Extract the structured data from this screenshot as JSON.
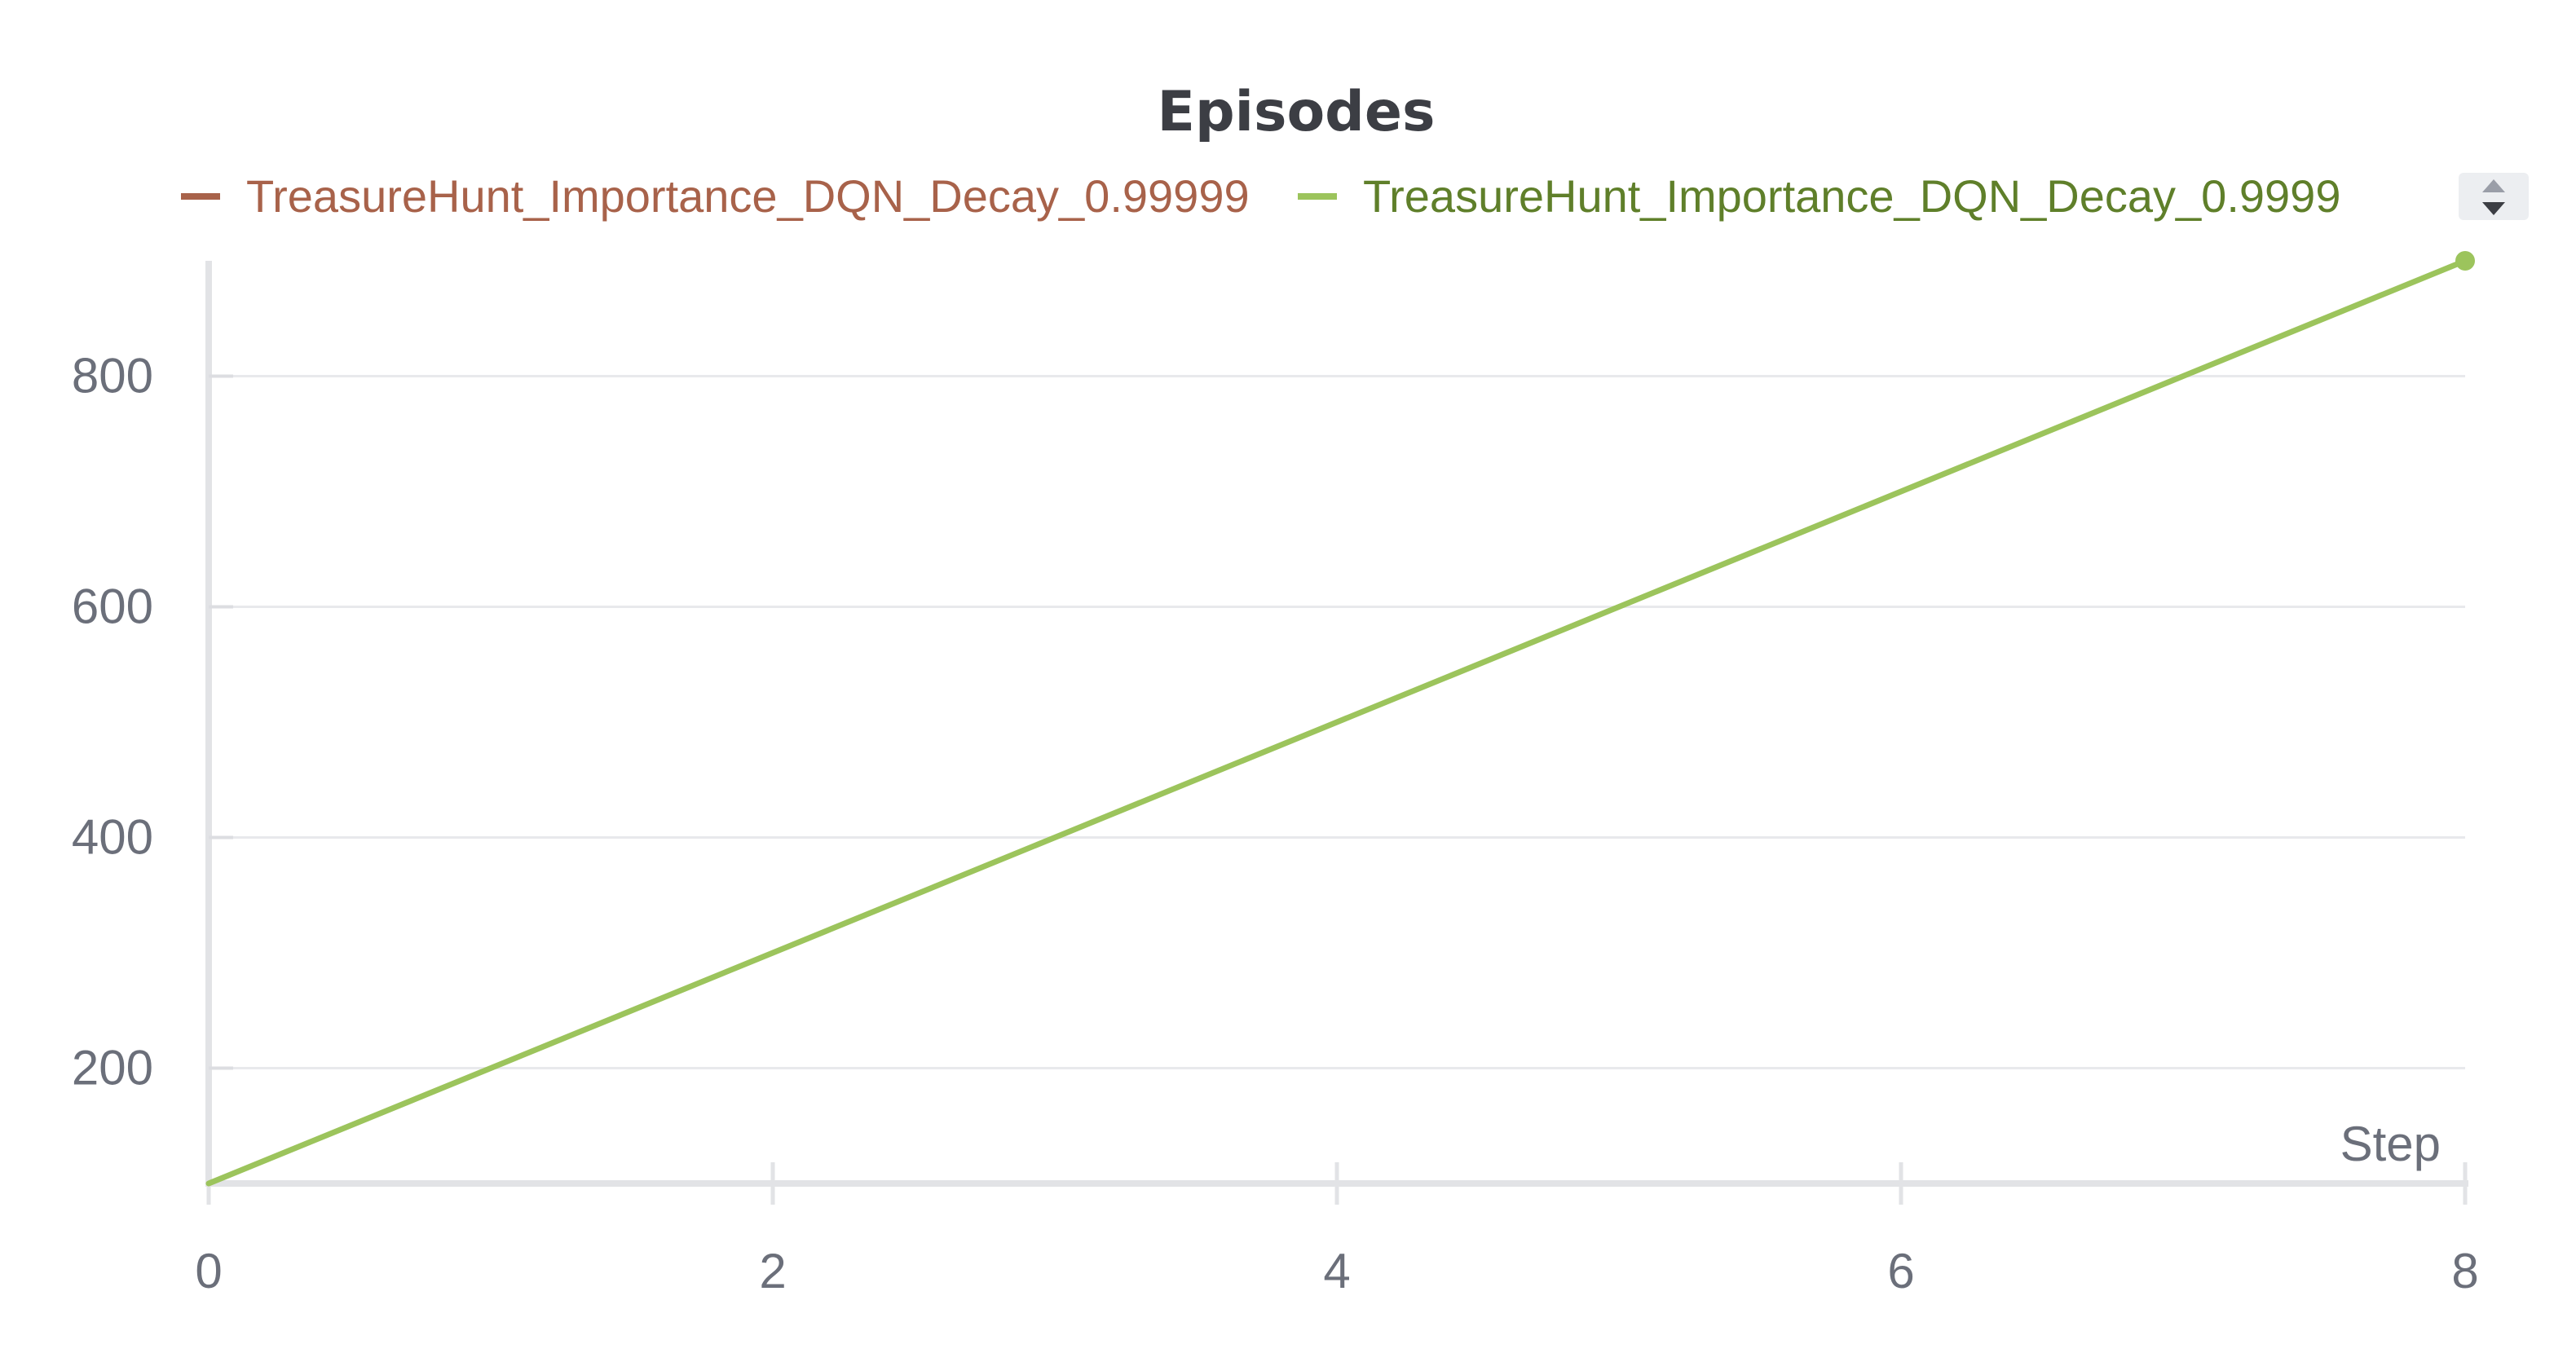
{
  "chart_data": {
    "type": "line",
    "title": "Episodes",
    "xlabel": "Step",
    "ylabel": "",
    "xlim": [
      0,
      8
    ],
    "ylim": [
      100,
      900
    ],
    "x_ticks": [
      0,
      2,
      4,
      6,
      8
    ],
    "y_ticks": [
      200,
      400,
      600,
      800
    ],
    "grid": true,
    "legend_position": "top",
    "series": [
      {
        "name": "TreasureHunt_Importance_DQN_Decay_0.99999",
        "color": "#a8624a",
        "text_color": "#a8624a",
        "x": [],
        "y": []
      },
      {
        "name": "TreasureHunt_Importance_DQN_Decay_0.9999",
        "color": "#9cc45c",
        "text_color": "#5f7f2a",
        "x": [
          0,
          8
        ],
        "y": [
          100,
          900
        ]
      }
    ]
  },
  "controls": {
    "legend_scroll_icon": "sort-arrows-icon"
  }
}
